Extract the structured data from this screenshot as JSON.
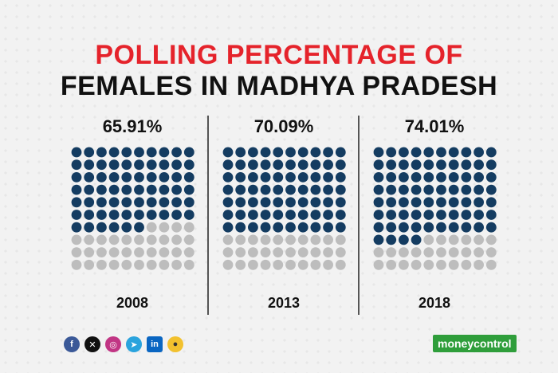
{
  "title": {
    "line1": "POLLING PERCENTAGE OF",
    "line2": "FEMALES IN MADHYA PRADESH",
    "line1_color": "#e5232b",
    "line2_color": "#111111"
  },
  "chart_data": {
    "type": "waffle",
    "grid": "10x10",
    "filled_color": "#143c61",
    "empty_color": "#bdbdbd",
    "panels": [
      {
        "year": "2008",
        "value": 65.91,
        "label": "65.91%"
      },
      {
        "year": "2013",
        "value": 70.09,
        "label": "70.09%"
      },
      {
        "year": "2018",
        "value": 74.01,
        "label": "74.01%"
      }
    ]
  },
  "social": {
    "icons": [
      "facebook-icon",
      "x-icon",
      "instagram-icon",
      "telegram-icon",
      "linkedin-icon",
      "koo-icon"
    ]
  },
  "brand": {
    "name": "moneycontrol",
    "color": "#2f9e3b"
  }
}
